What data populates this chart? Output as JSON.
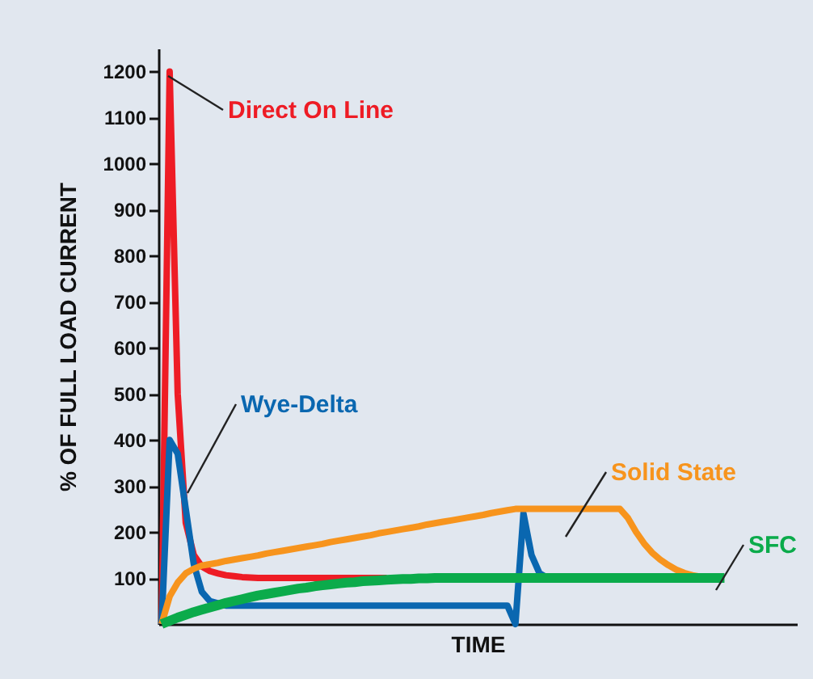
{
  "chart_data": {
    "type": "line",
    "xlabel": "TIME",
    "ylabel": "% OF FULL LOAD CURRENT",
    "categories": [
      null,
      null,
      null,
      null,
      null,
      null,
      null,
      null,
      null,
      null,
      null,
      null,
      null,
      null,
      null,
      null,
      null,
      null,
      null,
      null,
      null,
      null,
      null,
      null,
      null,
      null,
      null,
      null,
      null,
      null,
      null,
      null,
      null,
      null,
      null,
      null,
      null,
      null,
      null,
      null,
      null,
      null,
      null,
      null,
      null,
      null,
      null,
      null,
      null,
      null,
      null,
      null,
      null,
      null,
      null,
      null,
      null,
      null,
      null,
      null,
      null,
      null,
      null,
      null,
      null,
      null,
      null,
      null,
      null,
      null,
      null,
      null,
      null,
      null,
      null,
      null,
      null,
      null,
      null,
      null
    ],
    "ylim": [
      0,
      1250
    ],
    "yticks": [
      100,
      200,
      300,
      400,
      500,
      600,
      700,
      800,
      900,
      1000,
      1100,
      1200
    ],
    "tick_labels": "y",
    "grid": false,
    "marker": "none",
    "line_style": "solid",
    "series": [
      {
        "name": "Direct On Line",
        "color": "#ee1c25",
        "values": [
          0,
          1200,
          500,
          220,
          150,
          125,
          115,
          110,
          106,
          104,
          102,
          101,
          100,
          100,
          100,
          100,
          100,
          100,
          100,
          100,
          100,
          100,
          100,
          100,
          100,
          100,
          100,
          100,
          100,
          null,
          null,
          null,
          null,
          null,
          null,
          null,
          null,
          null,
          null,
          null,
          null,
          null,
          null,
          null,
          null,
          null,
          null,
          null,
          null,
          null,
          null,
          null,
          null,
          null,
          null,
          null,
          null,
          null,
          null,
          null,
          null,
          null,
          null,
          null,
          null,
          null,
          null,
          null,
          null,
          null,
          null,
          null,
          null,
          null,
          null,
          null,
          null,
          null,
          null,
          null
        ]
      },
      {
        "name": "Wye-Delta",
        "color": "#0a67b0",
        "values": [
          0,
          400,
          370,
          250,
          130,
          70,
          50,
          45,
          40,
          40,
          40,
          40,
          40,
          40,
          40,
          40,
          40,
          40,
          40,
          40,
          40,
          40,
          40,
          40,
          40,
          40,
          40,
          40,
          40,
          40,
          40,
          40,
          40,
          40,
          40,
          40,
          40,
          40,
          40,
          40,
          40,
          40,
          40,
          40,
          0,
          240,
          150,
          110,
          100,
          null,
          null,
          null,
          null,
          null,
          null,
          null,
          null,
          null,
          null,
          null,
          null,
          null,
          null,
          null,
          null,
          null,
          null,
          null,
          null,
          null,
          null,
          null,
          null,
          null,
          null,
          null,
          null,
          null,
          null,
          null
        ]
      },
      {
        "name": "Solid State",
        "color": "#f7941d",
        "values": [
          0,
          60,
          90,
          110,
          120,
          127,
          130,
          133,
          137,
          140,
          143,
          146,
          149,
          153,
          156,
          159,
          162,
          165,
          168,
          171,
          174,
          178,
          181,
          184,
          187,
          190,
          193,
          197,
          200,
          203,
          206,
          209,
          212,
          216,
          219,
          222,
          225,
          228,
          231,
          234,
          237,
          241,
          244,
          247,
          250,
          250,
          250,
          250,
          250,
          250,
          250,
          250,
          250,
          250,
          250,
          250,
          250,
          250,
          230,
          200,
          175,
          155,
          140,
          128,
          118,
          111,
          106,
          103,
          null,
          null,
          null,
          null,
          null,
          null,
          null,
          null,
          null,
          null,
          null,
          null
        ]
      },
      {
        "name": "SFC",
        "color": "#0bab4b",
        "values": [
          0,
          7,
          14,
          20,
          26,
          31,
          36,
          41,
          46,
          50,
          54,
          58,
          62,
          65,
          68,
          71,
          74,
          77,
          79,
          82,
          84,
          86,
          88,
          90,
          91,
          93,
          94,
          95,
          96,
          97,
          98,
          98,
          99,
          99,
          100,
          100,
          100,
          100,
          100,
          100,
          100,
          100,
          100,
          100,
          100,
          100,
          100,
          100,
          100,
          100,
          100,
          100,
          100,
          100,
          100,
          100,
          100,
          100,
          100,
          100,
          100,
          100,
          100,
          100,
          100,
          100,
          100,
          100,
          100,
          100,
          100,
          null,
          null,
          null,
          null,
          null,
          null,
          null,
          null,
          null
        ]
      }
    ]
  }
}
